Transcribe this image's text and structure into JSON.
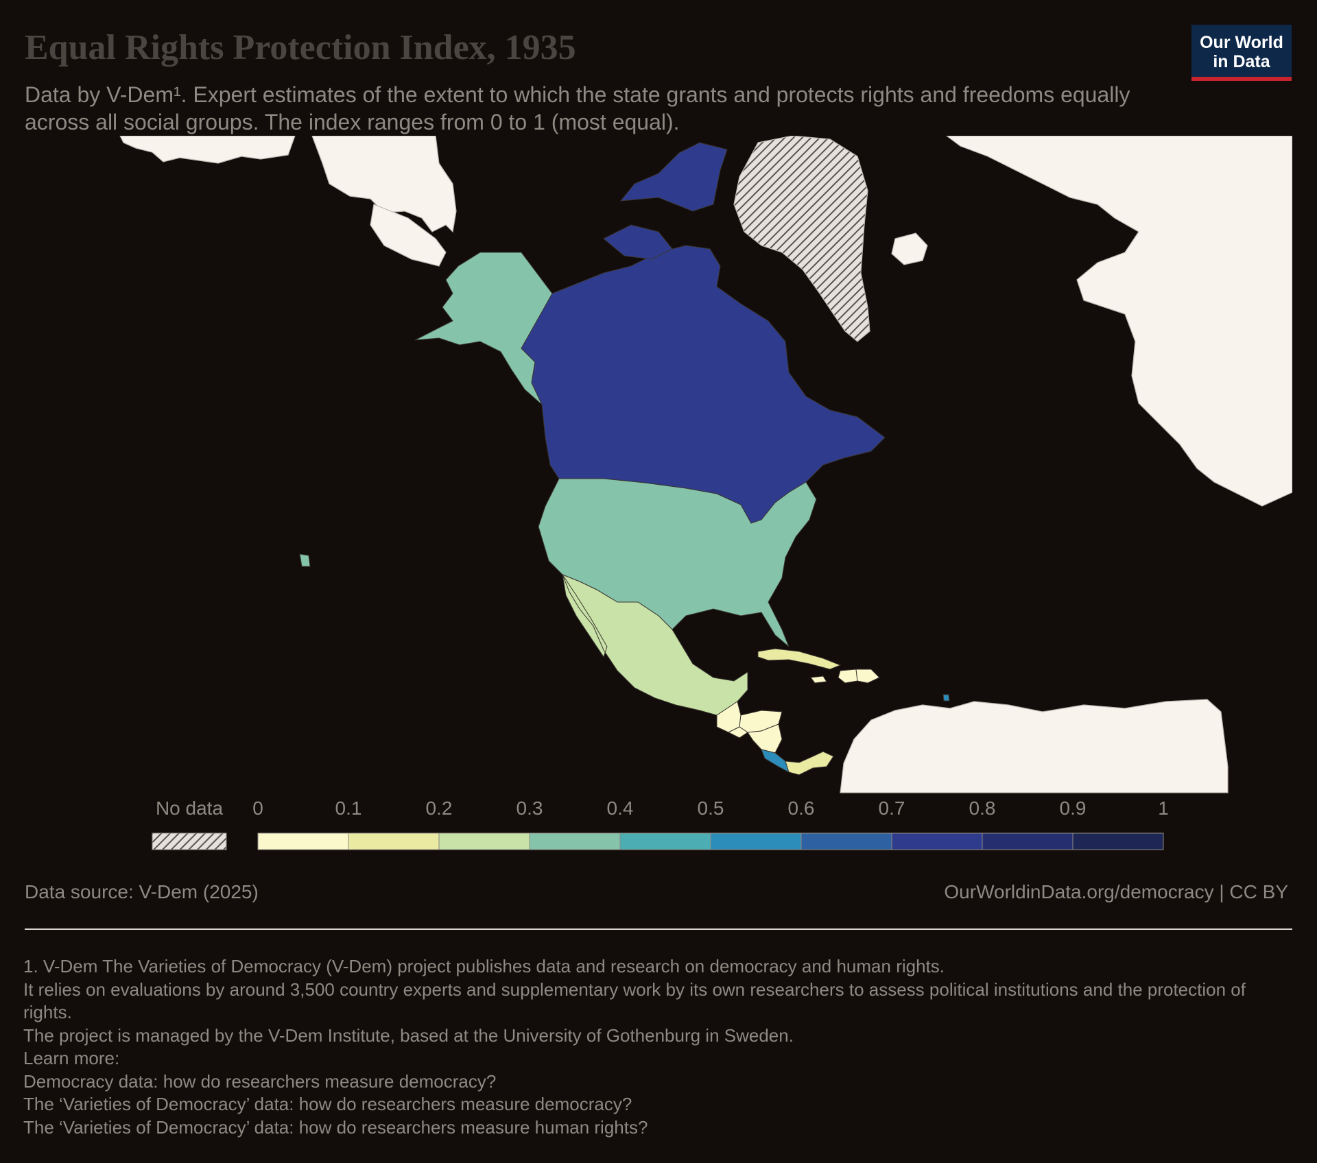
{
  "title": "Equal Rights Protection Index, 1935",
  "subtitle": "Data by V-Dem¹. Expert estimates of the extent to which the state grants and protects rights and freedoms equally across all social groups. The index ranges from 0 to 1 (most equal).",
  "logo": {
    "line1": "Our World",
    "line2": "in Data",
    "bg_color": "#0e2849",
    "accent_color": "#c8242e"
  },
  "chart_data": {
    "type": "choropleth",
    "region": "North America",
    "year": 1935,
    "countries": [
      {
        "name": "Canada",
        "value": 0.72
      },
      {
        "name": "United States",
        "value": 0.33
      },
      {
        "name": "Alaska (United States)",
        "value": 0.33
      },
      {
        "name": "Mexico",
        "value": 0.22
      },
      {
        "name": "Cuba",
        "value": 0.18
      },
      {
        "name": "Haiti",
        "value": 0.05
      },
      {
        "name": "Dominican Republic",
        "value": 0.05
      },
      {
        "name": "Jamaica",
        "value": 0.05
      },
      {
        "name": "Guatemala",
        "value": 0.05
      },
      {
        "name": "Honduras",
        "value": 0.05
      },
      {
        "name": "El Salvador",
        "value": 0.05
      },
      {
        "name": "Nicaragua",
        "value": 0.05
      },
      {
        "name": "Costa Rica",
        "value": 0.55
      },
      {
        "name": "Panama",
        "value": 0.12
      },
      {
        "name": "Trinidad and Tobago",
        "value": 0.55
      },
      {
        "name": "Greenland",
        "value": null
      }
    ],
    "legend": {
      "no_data_label": "No data",
      "ticks": [
        "0",
        "0.1",
        "0.2",
        "0.3",
        "0.4",
        "0.5",
        "0.6",
        "0.7",
        "0.8",
        "0.9",
        "1"
      ],
      "colors": [
        "#fbf8cc",
        "#ebeaa3",
        "#c8e2a7",
        "#85c4aa",
        "#4cadb2",
        "#2c8cba",
        "#2e61a2",
        "#2f3c8d",
        "#252f70",
        "#1d2654"
      ]
    },
    "palette": {
      "no_data_land": "#f9f3ee",
      "border": "#bdb7b1",
      "background": "#120d0a"
    }
  },
  "source": "Data source: V-Dem (2025)",
  "url": "OurWorldinData.org/democracy | CC BY",
  "notes": [
    "1. V-Dem The Varieties of Democracy (V-Dem) project publishes data and research on democracy and human rights.",
    "It relies on evaluations by around 3,500 country experts and supplementary work by its own researchers to assess political institutions and the protection of rights.",
    "The project is managed by the V-Dem Institute, based at the University of Gothenburg in Sweden.",
    "Learn more:",
    "Democracy data: how do researchers measure democracy?",
    "The ‘Varieties of Democracy’ data: how do researchers measure democracy?",
    "The ‘Varieties of Democracy’ data: how do researchers measure human rights?"
  ]
}
